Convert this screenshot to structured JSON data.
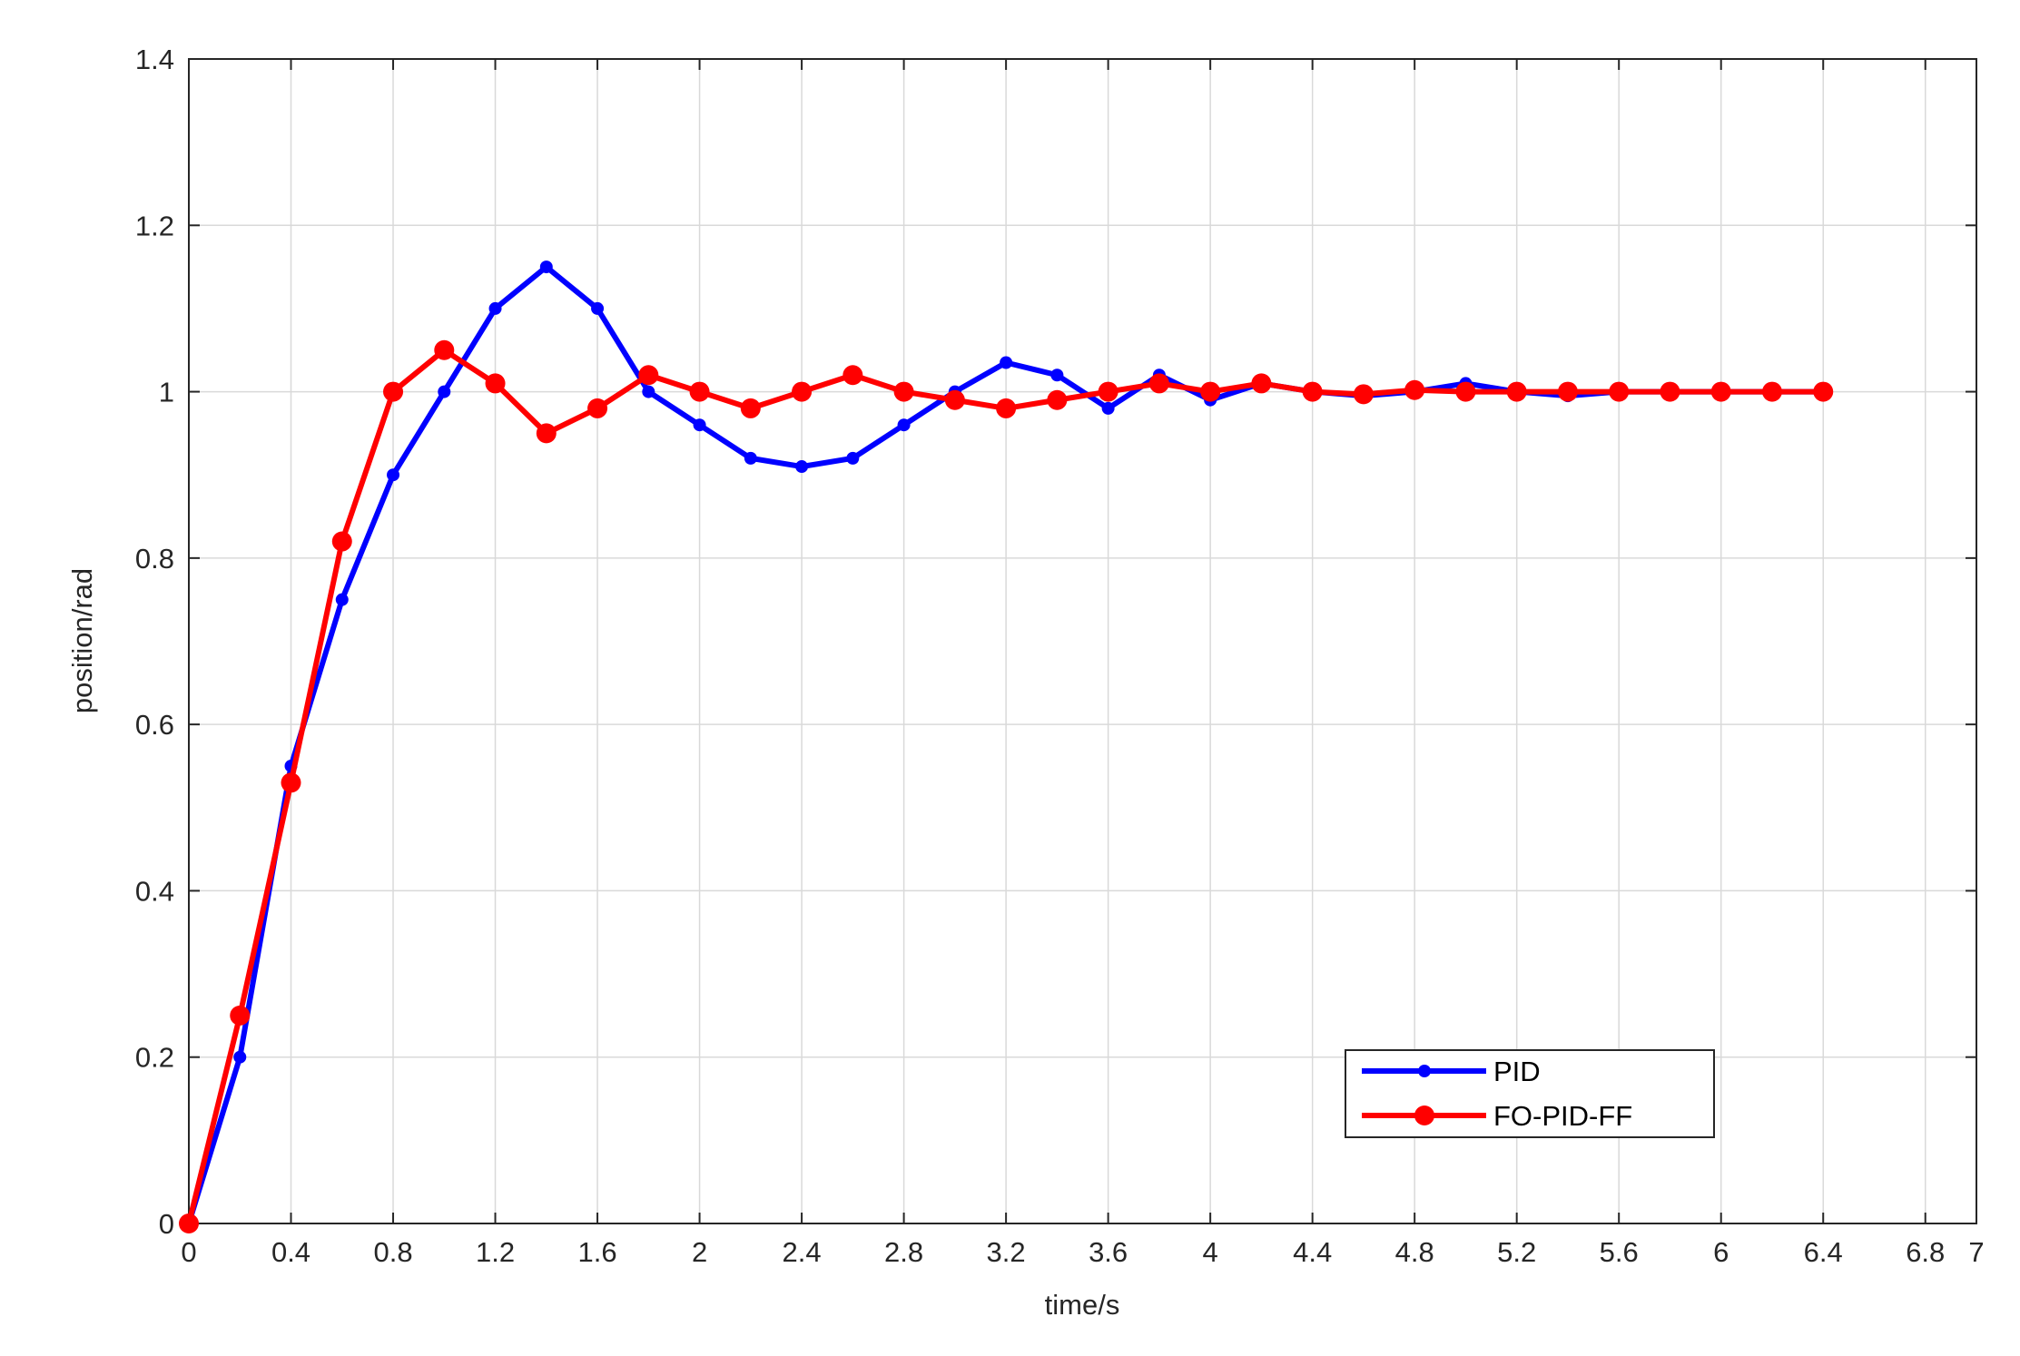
{
  "chart_data": {
    "type": "line",
    "title": "",
    "xlabel": "time/s",
    "ylabel": "position/rad",
    "xlim": [
      0,
      7
    ],
    "ylim": [
      0,
      1.4
    ],
    "x_ticks": [
      "0",
      "0.4",
      "0.8",
      "1.2",
      "1.6",
      "2",
      "2.4",
      "2.8",
      "3.2",
      "3.6",
      "4",
      "4.4",
      "4.8",
      "5.2",
      "5.6",
      "6",
      "6.4",
      "6.8",
      "7"
    ],
    "x_tick_values": [
      0,
      0.4,
      0.8,
      1.2,
      1.6,
      2,
      2.4,
      2.8,
      3.2,
      3.6,
      4,
      4.4,
      4.8,
      5.2,
      5.6,
      6,
      6.4,
      6.8,
      7
    ],
    "y_ticks": [
      "0",
      "0.2",
      "0.4",
      "0.6",
      "0.8",
      "1",
      "1.2",
      "1.4"
    ],
    "y_tick_values": [
      0,
      0.2,
      0.4,
      0.6,
      0.8,
      1,
      1.2,
      1.4
    ],
    "grid": true,
    "legend_position": "bottom-right",
    "x": [
      0,
      0.2,
      0.4,
      0.6,
      0.8,
      1.0,
      1.2,
      1.4,
      1.6,
      1.8,
      2.0,
      2.2,
      2.4,
      2.6,
      2.8,
      3.0,
      3.2,
      3.4,
      3.6,
      3.8,
      4.0,
      4.2,
      4.4,
      4.6,
      4.8,
      5.0,
      5.2,
      5.4,
      5.6,
      5.8,
      6.0,
      6.2,
      6.4
    ],
    "series": [
      {
        "name": "PID",
        "color": "#0000ff",
        "values": [
          0,
          0.2,
          0.55,
          0.75,
          0.9,
          1.0,
          1.1,
          1.15,
          1.1,
          1.0,
          0.96,
          0.92,
          0.91,
          0.92,
          0.96,
          1.0,
          1.035,
          1.02,
          0.98,
          1.02,
          0.99,
          1.01,
          1.0,
          0.995,
          1.0,
          1.01,
          1.0,
          0.995,
          1.0,
          1.0,
          1.0,
          1.0,
          1.0
        ]
      },
      {
        "name": "FO-PID-FF",
        "color": "#ff0000",
        "values": [
          0,
          0.25,
          0.53,
          0.82,
          1.0,
          1.05,
          1.01,
          0.95,
          0.98,
          1.02,
          1.0,
          0.98,
          1.0,
          1.02,
          1.0,
          0.99,
          0.98,
          0.99,
          1.0,
          1.01,
          1.0,
          1.01,
          1.0,
          0.997,
          1.002,
          1.0,
          1.0,
          1.0,
          1.0,
          1.0,
          1.0,
          1.0,
          1.0
        ]
      }
    ]
  }
}
